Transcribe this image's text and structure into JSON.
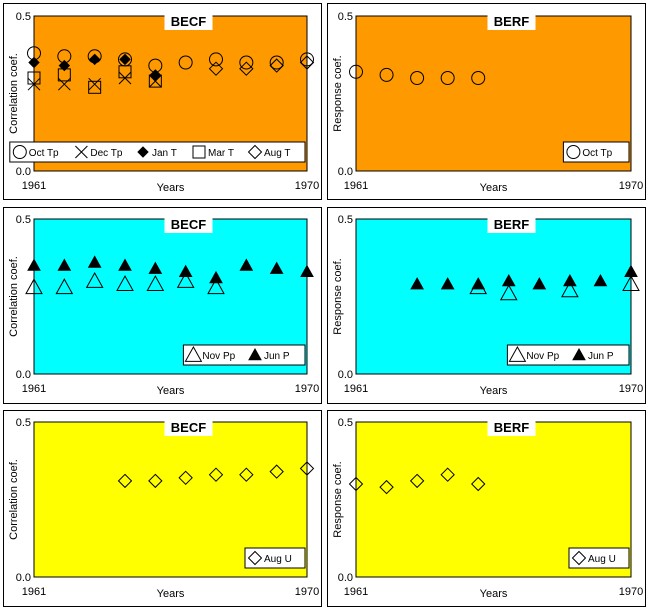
{
  "panel_colors": {
    "orange": "#FF9900",
    "cyan": "#00FFFF",
    "yellow": "#FFFF00"
  },
  "chart_data": [
    {
      "type": "scatter",
      "title": "BECF",
      "xlabel": "Years",
      "ylabel": "Correlation coef.",
      "x_start_label": "1961",
      "x_end_label": "1970",
      "ylim": [
        0,
        0.5
      ],
      "y_ticks": [
        "0.0",
        "0.5"
      ],
      "xlim": [
        1961,
        1970
      ],
      "background": "#FF9900",
      "legend_position": "bottom-right",
      "series": [
        {
          "name": "Oct Tp",
          "marker": "circle",
          "x": [
            1961,
            1962,
            1963,
            1964,
            1965,
            1966,
            1967,
            1968,
            1969,
            1970
          ],
          "y": [
            0.38,
            0.37,
            0.37,
            0.36,
            0.34,
            0.35,
            0.36,
            0.35,
            0.35,
            0.36
          ]
        },
        {
          "name": "Dec Tp",
          "marker": "x",
          "x": [
            1961,
            1962,
            1963,
            1964,
            1965
          ],
          "y": [
            0.28,
            0.28,
            0.28,
            0.3,
            0.29
          ]
        },
        {
          "name": "Jan T",
          "marker": "diamond-filled",
          "x": [
            1961,
            1962,
            1963,
            1964,
            1965
          ],
          "y": [
            0.35,
            0.34,
            0.36,
            0.36,
            0.31
          ]
        },
        {
          "name": "Mar T",
          "marker": "square",
          "x": [
            1961,
            1962,
            1963,
            1964,
            1965
          ],
          "y": [
            0.3,
            0.31,
            0.27,
            0.32,
            0.29
          ]
        },
        {
          "name": "Aug T",
          "marker": "diamond",
          "x": [
            1967,
            1968,
            1969,
            1970
          ],
          "y": [
            0.33,
            0.33,
            0.34,
            0.35
          ]
        }
      ]
    },
    {
      "type": "scatter",
      "title": "BERF",
      "xlabel": "Years",
      "ylabel": "Response coef.",
      "x_start_label": "1961",
      "x_end_label": "1970",
      "ylim": [
        0,
        0.5
      ],
      "y_ticks": [
        "0.0",
        "0.5"
      ],
      "xlim": [
        1961,
        1970
      ],
      "background": "#FF9900",
      "legend_position": "bottom-right",
      "series": [
        {
          "name": "Oct Tp",
          "marker": "circle",
          "x": [
            1961,
            1962,
            1963,
            1964,
            1965
          ],
          "y": [
            0.32,
            0.31,
            0.3,
            0.3,
            0.3
          ]
        }
      ]
    },
    {
      "type": "scatter",
      "title": "BECF",
      "xlabel": "Years",
      "ylabel": "Correlation coef.",
      "x_start_label": "1961",
      "x_end_label": "1970",
      "ylim": [
        0,
        0.5
      ],
      "y_ticks": [
        "0.0",
        "0.5"
      ],
      "xlim": [
        1961,
        1970
      ],
      "background": "#00FFFF",
      "legend_position": "bottom-right",
      "series": [
        {
          "name": "Nov Pp",
          "marker": "triangle",
          "x": [
            1961,
            1962,
            1963,
            1964,
            1965,
            1966,
            1967
          ],
          "y": [
            0.28,
            0.28,
            0.3,
            0.29,
            0.29,
            0.3,
            0.28
          ]
        },
        {
          "name": "Jun P",
          "marker": "triangle-filled",
          "x": [
            1961,
            1962,
            1963,
            1964,
            1965,
            1966,
            1967,
            1968,
            1969,
            1970
          ],
          "y": [
            0.35,
            0.35,
            0.36,
            0.35,
            0.34,
            0.33,
            0.31,
            0.35,
            0.34,
            0.33
          ]
        }
      ]
    },
    {
      "type": "scatter",
      "title": "BERF",
      "xlabel": "Years",
      "ylabel": "Response coef.",
      "x_start_label": "1961",
      "x_end_label": "1970",
      "ylim": [
        0,
        0.5
      ],
      "y_ticks": [
        "0.0",
        "0.5"
      ],
      "xlim": [
        1961,
        1970
      ],
      "background": "#00FFFF",
      "legend_position": "bottom-right",
      "series": [
        {
          "name": "Nov Pp",
          "marker": "triangle",
          "x": [
            1965,
            1966,
            1968,
            1970
          ],
          "y": [
            0.28,
            0.26,
            0.27,
            0.29
          ]
        },
        {
          "name": "Jun P",
          "marker": "triangle-filled",
          "x": [
            1963,
            1964,
            1965,
            1966,
            1967,
            1968,
            1969,
            1970
          ],
          "y": [
            0.29,
            0.29,
            0.29,
            0.3,
            0.29,
            0.3,
            0.3,
            0.33
          ]
        }
      ]
    },
    {
      "type": "scatter",
      "title": "BECF",
      "xlabel": "Years",
      "ylabel": "Correlation coef.",
      "x_start_label": "1961",
      "x_end_label": "1970",
      "ylim": [
        0,
        0.5
      ],
      "y_ticks": [
        "0.0",
        "0.5"
      ],
      "xlim": [
        1961,
        1970
      ],
      "background": "#FFFF00",
      "legend_position": "bottom-right",
      "series": [
        {
          "name": "Aug U",
          "marker": "diamond",
          "x": [
            1964,
            1965,
            1966,
            1967,
            1968,
            1969,
            1970
          ],
          "y": [
            0.31,
            0.31,
            0.32,
            0.33,
            0.33,
            0.34,
            0.35
          ]
        }
      ]
    },
    {
      "type": "scatter",
      "title": "BERF",
      "xlabel": "Years",
      "ylabel": "Response coef.",
      "x_start_label": "1961",
      "x_end_label": "1970",
      "ylim": [
        0,
        0.5
      ],
      "y_ticks": [
        "0.0",
        "0.5"
      ],
      "xlim": [
        1961,
        1970
      ],
      "background": "#FFFF00",
      "legend_position": "bottom-right",
      "series": [
        {
          "name": "Aug U",
          "marker": "diamond",
          "x": [
            1961,
            1962,
            1963,
            1964,
            1965
          ],
          "y": [
            0.3,
            0.29,
            0.31,
            0.33,
            0.3
          ]
        }
      ]
    }
  ]
}
